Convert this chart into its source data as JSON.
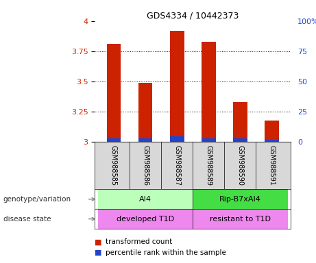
{
  "title": "GDS4334 / 10442373",
  "samples": [
    "GSM988585",
    "GSM988586",
    "GSM988587",
    "GSM988589",
    "GSM988590",
    "GSM988591"
  ],
  "red_values": [
    3.81,
    3.49,
    3.92,
    3.83,
    3.33,
    3.18
  ],
  "blue_values": [
    3.03,
    3.03,
    3.05,
    3.03,
    3.03,
    3.02
  ],
  "ylim_left": [
    3.0,
    4.0
  ],
  "ylim_right": [
    0,
    100
  ],
  "yticks_left": [
    3.0,
    3.25,
    3.5,
    3.75,
    4.0
  ],
  "yticks_right": [
    0,
    25,
    50,
    75,
    100
  ],
  "ytick_labels_left": [
    "3",
    "3.25",
    "3.5",
    "3.75",
    "4"
  ],
  "ytick_labels_right": [
    "0",
    "25",
    "50",
    "75",
    "100%"
  ],
  "bar_bottom": 3.0,
  "red_color": "#cc2200",
  "blue_color": "#2244cc",
  "group1_label": "AI4",
  "group2_label": "Rip-B7xAI4",
  "group1_color": "#bbffbb",
  "group2_color": "#44dd44",
  "disease1_label": "developed T1D",
  "disease2_label": "resistant to T1D",
  "disease_color": "#ee88ee",
  "sample_bg_color": "#d8d8d8",
  "genotype_label": "genotype/variation",
  "disease_state_label": "disease state",
  "legend_red": "transformed count",
  "legend_blue": "percentile rank within the sample",
  "arrow_color": "#888888",
  "label_color": "#333333"
}
